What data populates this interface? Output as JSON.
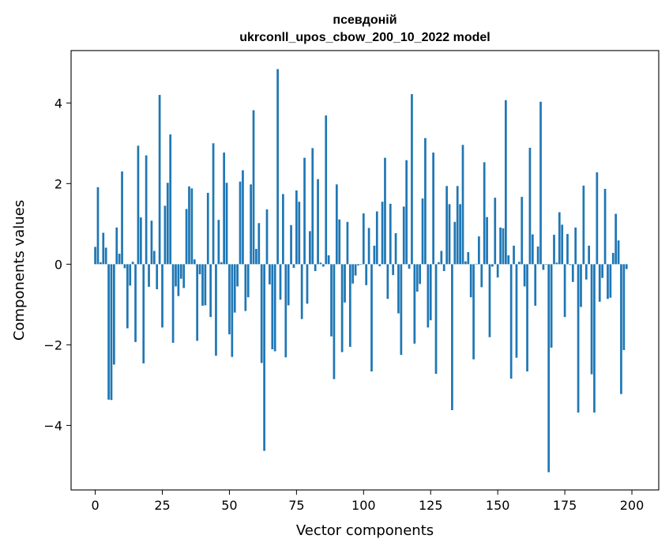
{
  "chart_data": {
    "type": "bar",
    "title_line1": "псевдоній",
    "title_line2": "ukrconll_upos_cbow_200_10_2022 model",
    "xlabel": "Vector components",
    "ylabel": "Components values",
    "xlim": [
      -9,
      210
    ],
    "ylim": [
      -5.6,
      5.3
    ],
    "xticks": [
      0,
      25,
      50,
      75,
      100,
      125,
      150,
      175,
      200
    ],
    "yticks": [
      -4,
      -2,
      0,
      2,
      4
    ],
    "ytick_labels": [
      "−4",
      "−2",
      "0",
      "2",
      "4"
    ],
    "bar_color": "#1f77b4",
    "values": [
      0.43,
      1.91,
      0.05,
      0.78,
      0.41,
      -3.36,
      -3.37,
      -2.49,
      0.91,
      0.26,
      2.3,
      -0.1,
      -1.59,
      -0.53,
      0.06,
      -1.93,
      2.94,
      1.16,
      -2.46,
      2.7,
      -0.56,
      1.08,
      0.33,
      -0.62,
      4.2,
      -1.57,
      1.45,
      2.02,
      3.22,
      -1.95,
      -0.55,
      -0.79,
      -0.36,
      -0.59,
      1.37,
      1.93,
      1.88,
      0.12,
      -1.9,
      -0.25,
      -1.03,
      -1.02,
      1.77,
      -1.31,
      3.0,
      -2.27,
      1.1,
      0.05,
      2.77,
      2.02,
      -1.74,
      -2.3,
      -1.2,
      -0.55,
      2.05,
      2.33,
      -1.16,
      -0.82,
      1.98,
      3.82,
      0.38,
      1.02,
      -2.45,
      -4.63,
      1.36,
      -0.5,
      -2.11,
      -2.16,
      4.84,
      -0.88,
      1.74,
      -2.31,
      -1.02,
      0.97,
      -0.09,
      1.83,
      1.55,
      -1.36,
      2.64,
      -0.98,
      0.82,
      2.88,
      -0.17,
      2.11,
      0.04,
      -0.06,
      3.69,
      0.22,
      -1.79,
      -2.85,
      1.98,
      1.11,
      -2.18,
      -0.95,
      1.05,
      -2.05,
      -0.48,
      -0.28,
      -0.03,
      0.0,
      1.26,
      -0.52,
      0.9,
      -2.66,
      0.46,
      1.31,
      -0.05,
      1.55,
      2.64,
      -0.86,
      1.5,
      -0.27,
      0.77,
      -1.22,
      -2.25,
      1.43,
      2.58,
      -0.11,
      4.22,
      -1.97,
      -0.68,
      -0.49,
      1.63,
      3.13,
      -1.57,
      -1.39,
      2.77,
      -2.72,
      0.05,
      0.33,
      -0.17,
      1.94,
      1.49,
      -3.62,
      1.05,
      1.94,
      1.49,
      2.96,
      0.07,
      0.3,
      -0.82,
      -2.36,
      0.01,
      0.69,
      -0.57,
      2.53,
      1.17,
      -1.81,
      -0.06,
      1.65,
      -0.33,
      0.91,
      0.89,
      4.07,
      0.22,
      -2.84,
      0.46,
      -2.32,
      0.06,
      1.67,
      -0.55,
      -2.66,
      2.89,
      0.74,
      -1.03,
      0.44,
      4.03,
      -0.14,
      0.0,
      -5.16,
      -2.07,
      0.73,
      0.04,
      1.29,
      0.98,
      -1.31,
      0.75,
      -0.02,
      -0.44,
      0.91,
      -3.68,
      -1.06,
      1.95,
      -0.38,
      0.46,
      -2.73,
      -3.68,
      2.28,
      -0.93,
      -0.34,
      1.87,
      -0.86,
      -0.83,
      0.28,
      1.25,
      0.59,
      -3.22,
      -2.13,
      -0.12
    ]
  }
}
